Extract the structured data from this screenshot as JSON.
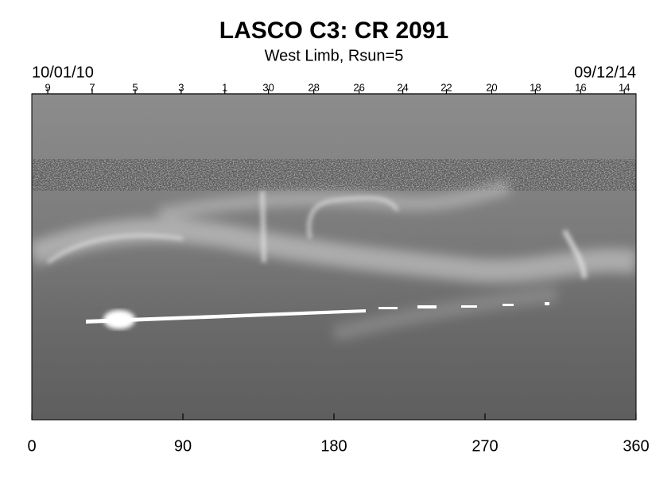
{
  "chart_data": {
    "type": "synoptic-map",
    "title": "LASCO C3: CR 2091",
    "subtitle": "West Limb, Rsun=5",
    "start_date": "10/01/10",
    "end_date": "09/12/14",
    "xlim": [
      0,
      360
    ],
    "xticks": [
      0,
      90,
      180,
      270,
      360
    ],
    "top_ticks": [
      {
        "value": 9.5,
        "label": "9"
      },
      {
        "value": 36,
        "label": "7"
      },
      {
        "value": 61.6,
        "label": "5"
      },
      {
        "value": 89,
        "label": "3"
      },
      {
        "value": 115,
        "label": "1"
      },
      {
        "value": 141,
        "label": "30"
      },
      {
        "value": 168,
        "label": "28"
      },
      {
        "value": 195,
        "label": "26"
      },
      {
        "value": 221,
        "label": "24"
      },
      {
        "value": 247,
        "label": "22"
      },
      {
        "value": 274,
        "label": "20"
      },
      {
        "value": 300,
        "label": "18"
      },
      {
        "value": 327,
        "label": "16"
      },
      {
        "value": 353,
        "label": "14"
      }
    ]
  }
}
